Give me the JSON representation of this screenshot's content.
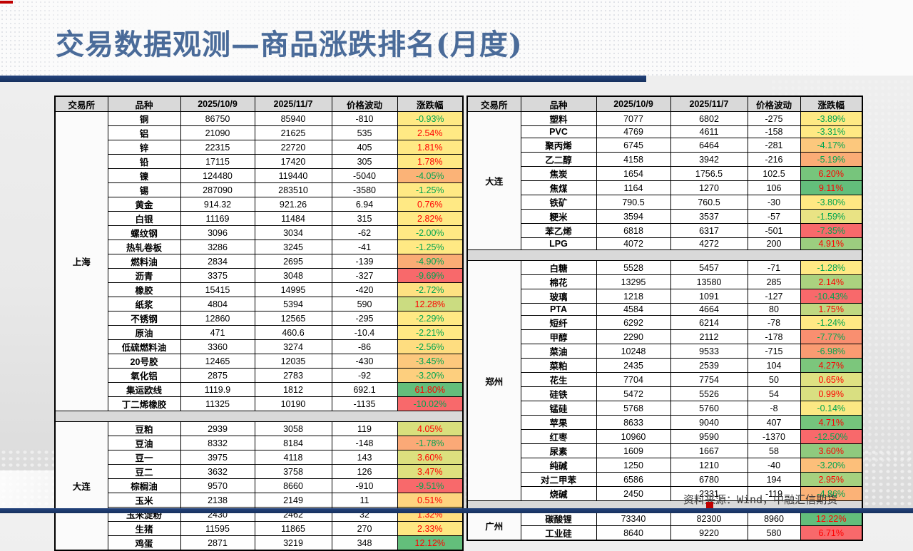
{
  "page": {
    "title": "交易数据观测—商品涨跌排名(月度)",
    "source_note": "资料来源：Wind，中融汇信期货"
  },
  "colors": {
    "up_text": "#FF0000",
    "down_text": "#00A550",
    "bar_navy": "#1B3764",
    "accent_red": "#C00000",
    "header_gray": "#D9D9D9"
  },
  "tables": [
    {
      "id": "table-left",
      "headers": [
        "交易所",
        "品种",
        "2025/10/9",
        "2025/11/7",
        "价格波动",
        "涨跌幅"
      ],
      "sections": [
        {
          "exchange": "上海",
          "rows": [
            {
              "variety": "铜",
              "oct": "86750",
              "nov": "85940",
              "delta": "-810",
              "pct": "-0.93%",
              "bg": "#FFE984",
              "dir": "down"
            },
            {
              "variety": "铝",
              "oct": "21090",
              "nov": "21625",
              "delta": "535",
              "pct": "2.54%",
              "bg": "#FFE984",
              "dir": "up"
            },
            {
              "variety": "锌",
              "oct": "22315",
              "nov": "22720",
              "delta": "405",
              "pct": "1.81%",
              "bg": "#FFE984",
              "dir": "up"
            },
            {
              "variety": "铅",
              "oct": "17115",
              "nov": "17420",
              "delta": "305",
              "pct": "1.78%",
              "bg": "#FFE984",
              "dir": "up"
            },
            {
              "variety": "镍",
              "oct": "124480",
              "nov": "119440",
              "delta": "-5040",
              "pct": "-4.05%",
              "bg": "#FBB377",
              "dir": "down"
            },
            {
              "variety": "锡",
              "oct": "287090",
              "nov": "283510",
              "delta": "-3580",
              "pct": "-1.25%",
              "bg": "#FFE984",
              "dir": "down"
            },
            {
              "variety": "黄金",
              "oct": "914.32",
              "nov": "921.26",
              "delta": "6.94",
              "pct": "0.76%",
              "bg": "#FFE984",
              "dir": "up"
            },
            {
              "variety": "白银",
              "oct": "11169",
              "nov": "11484",
              "delta": "315",
              "pct": "2.82%",
              "bg": "#FFE984",
              "dir": "up"
            },
            {
              "variety": "螺纹钢",
              "oct": "3096",
              "nov": "3034",
              "delta": "-62",
              "pct": "-2.00%",
              "bg": "#FFE984",
              "dir": "down"
            },
            {
              "variety": "热轧卷板",
              "oct": "3286",
              "nov": "3245",
              "delta": "-41",
              "pct": "-1.25%",
              "bg": "#FFE984",
              "dir": "down"
            },
            {
              "variety": "燃料油",
              "oct": "2834",
              "nov": "2695",
              "delta": "-139",
              "pct": "-4.90%",
              "bg": "#FAAC75",
              "dir": "down"
            },
            {
              "variety": "沥青",
              "oct": "3375",
              "nov": "3048",
              "delta": "-327",
              "pct": "-9.69%",
              "bg": "#F8696B",
              "dir": "down"
            },
            {
              "variety": "橡胶",
              "oct": "15415",
              "nov": "14995",
              "delta": "-420",
              "pct": "-2.72%",
              "bg": "#FEE182",
              "dir": "down"
            },
            {
              "variety": "纸浆",
              "oct": "4804",
              "nov": "5394",
              "delta": "590",
              "pct": "12.28%",
              "bg": "#CBDC81",
              "dir": "up"
            },
            {
              "variety": "不锈钢",
              "oct": "12860",
              "nov": "12565",
              "delta": "-295",
              "pct": "-2.29%",
              "bg": "#FFE984",
              "dir": "down"
            },
            {
              "variety": "原油",
              "oct": "471",
              "nov": "460.6",
              "delta": "-10.4",
              "pct": "-2.21%",
              "bg": "#FFE984",
              "dir": "down"
            },
            {
              "variety": "低硫燃料油",
              "oct": "3360",
              "nov": "3274",
              "delta": "-86",
              "pct": "-2.56%",
              "bg": "#FEDD80",
              "dir": "down"
            },
            {
              "variety": "20号胶",
              "oct": "12465",
              "nov": "12035",
              "delta": "-430",
              "pct": "-3.45%",
              "bg": "#FCC87D",
              "dir": "down"
            },
            {
              "variety": "氧化铝",
              "oct": "2875",
              "nov": "2783",
              "delta": "-92",
              "pct": "-3.20%",
              "bg": "#FDCF7E",
              "dir": "down"
            },
            {
              "variety": "集运欧线",
              "oct": "1119.9",
              "nov": "1812",
              "delta": "692.1",
              "pct": "61.80%",
              "bg": "#63BE7B",
              "dir": "up"
            },
            {
              "variety": "丁二烯橡胶",
              "oct": "11325",
              "nov": "10190",
              "delta": "-1135",
              "pct": "-10.02%",
              "bg": "#F8696B",
              "dir": "down"
            }
          ]
        },
        {
          "exchange": "大连",
          "rows": [
            {
              "variety": "豆粕",
              "oct": "2939",
              "nov": "3058",
              "delta": "119",
              "pct": "4.05%",
              "bg": "#D9DF7D",
              "dir": "up"
            },
            {
              "variety": "豆油",
              "oct": "8332",
              "nov": "8184",
              "delta": "-148",
              "pct": "-1.78%",
              "bg": "#FBA977",
              "dir": "down"
            },
            {
              "variety": "豆一",
              "oct": "3975",
              "nov": "4118",
              "delta": "143",
              "pct": "3.60%",
              "bg": "#DCE07E",
              "dir": "up"
            },
            {
              "variety": "豆二",
              "oct": "3632",
              "nov": "3758",
              "delta": "126",
              "pct": "3.47%",
              "bg": "#DEE07E",
              "dir": "up"
            },
            {
              "variety": "棕榈油",
              "oct": "9570",
              "nov": "8660",
              "delta": "-910",
              "pct": "-9.51%",
              "bg": "#F8696B",
              "dir": "down"
            },
            {
              "variety": "玉米",
              "oct": "2138",
              "nov": "2149",
              "delta": "11",
              "pct": "0.51%",
              "bg": "#FDD47F",
              "dir": "up"
            },
            {
              "variety": "玉米淀粉",
              "oct": "2430",
              "nov": "2462",
              "delta": "32",
              "pct": "1.32%",
              "bg": "#FEDF80",
              "dir": "up"
            },
            {
              "variety": "生猪",
              "oct": "11595",
              "nov": "11865",
              "delta": "270",
              "pct": "2.33%",
              "bg": "#FEE782",
              "dir": "up"
            },
            {
              "variety": "鸡蛋",
              "oct": "2871",
              "nov": "3219",
              "delta": "348",
              "pct": "12.12%",
              "bg": "#63BE7B",
              "dir": "up"
            }
          ]
        }
      ]
    },
    {
      "id": "table-right",
      "headers": [
        "交易所",
        "品种",
        "2025/10/9",
        "2025/11/7",
        "价格波动",
        "涨跌幅"
      ],
      "sections": [
        {
          "exchange": "大连",
          "rows": [
            {
              "variety": "塑料",
              "oct": "7077",
              "nov": "6802",
              "delta": "-275",
              "pct": "-3.89%",
              "bg": "#FFE984",
              "dir": "down"
            },
            {
              "variety": "PVC",
              "oct": "4769",
              "nov": "4611",
              "delta": "-158",
              "pct": "-3.31%",
              "bg": "#FFE984",
              "dir": "down"
            },
            {
              "variety": "聚丙烯",
              "oct": "6745",
              "nov": "6464",
              "delta": "-281",
              "pct": "-4.17%",
              "bg": "#FCC87D",
              "dir": "down"
            },
            {
              "variety": "乙二醇",
              "oct": "4158",
              "nov": "3942",
              "delta": "-216",
              "pct": "-5.19%",
              "bg": "#FBAC76",
              "dir": "down"
            },
            {
              "variety": "焦炭",
              "oct": "1654",
              "nov": "1756.5",
              "delta": "102.5",
              "pct": "6.20%",
              "bg": "#77C57C",
              "dir": "up"
            },
            {
              "variety": "焦煤",
              "oct": "1164",
              "nov": "1270",
              "delta": "106",
              "pct": "9.11%",
              "bg": "#63BE7B",
              "dir": "up"
            },
            {
              "variety": "铁矿",
              "oct": "790.5",
              "nov": "760.5",
              "delta": "-30",
              "pct": "-3.80%",
              "bg": "#FFE883",
              "dir": "down"
            },
            {
              "variety": "粳米",
              "oct": "3594",
              "nov": "3537",
              "delta": "-57",
              "pct": "-1.59%",
              "bg": "#E9E384",
              "dir": "down"
            },
            {
              "variety": "苯乙烯",
              "oct": "6818",
              "nov": "6317",
              "delta": "-501",
              "pct": "-7.35%",
              "bg": "#F8696B",
              "dir": "down"
            },
            {
              "variety": "LPG",
              "oct": "4072",
              "nov": "4272",
              "delta": "200",
              "pct": "4.91%",
              "bg": "#9CCD7F",
              "dir": "up"
            }
          ]
        },
        {
          "exchange": "郑州",
          "rows": [
            {
              "variety": "白糖",
              "oct": "5528",
              "nov": "5457",
              "delta": "-71",
              "pct": "-1.28%",
              "bg": "#FFE984",
              "dir": "down"
            },
            {
              "variety": "棉花",
              "oct": "13295",
              "nov": "13580",
              "delta": "285",
              "pct": "2.14%",
              "bg": "#ABD27F",
              "dir": "up"
            },
            {
              "variety": "玻璃",
              "oct": "1218",
              "nov": "1091",
              "delta": "-127",
              "pct": "-10.43%",
              "bg": "#F8696B",
              "dir": "down"
            },
            {
              "variety": "PTA",
              "oct": "4584",
              "nov": "4664",
              "delta": "80",
              "pct": "1.75%",
              "bg": "#BFD881",
              "dir": "up"
            },
            {
              "variety": "短纤",
              "oct": "6292",
              "nov": "6214",
              "delta": "-78",
              "pct": "-1.24%",
              "bg": "#FFE984",
              "dir": "down"
            },
            {
              "variety": "甲醇",
              "oct": "2290",
              "nov": "2112",
              "delta": "-178",
              "pct": "-7.77%",
              "bg": "#F98F70",
              "dir": "down"
            },
            {
              "variety": "菜油",
              "oct": "10248",
              "nov": "9533",
              "delta": "-715",
              "pct": "-6.98%",
              "bg": "#FA9B72",
              "dir": "down"
            },
            {
              "variety": "菜粕",
              "oct": "2435",
              "nov": "2539",
              "delta": "104",
              "pct": "4.27%",
              "bg": "#7CC67C",
              "dir": "up"
            },
            {
              "variety": "花生",
              "oct": "7704",
              "nov": "7754",
              "delta": "50",
              "pct": "0.65%",
              "bg": "#DFE182",
              "dir": "up"
            },
            {
              "variety": "硅铁",
              "oct": "5472",
              "nov": "5526",
              "delta": "54",
              "pct": "0.99%",
              "bg": "#D9DF81",
              "dir": "up"
            },
            {
              "variety": "锰硅",
              "oct": "5768",
              "nov": "5760",
              "delta": "-8",
              "pct": "-0.14%",
              "bg": "#FCE883",
              "dir": "down"
            },
            {
              "variety": "苹果",
              "oct": "8633",
              "nov": "9040",
              "delta": "407",
              "pct": "4.71%",
              "bg": "#75C47C",
              "dir": "up"
            },
            {
              "variety": "红枣",
              "oct": "10960",
              "nov": "9590",
              "delta": "-1370",
              "pct": "-12.50%",
              "bg": "#F8696B",
              "dir": "down"
            },
            {
              "variety": "尿素",
              "oct": "1609",
              "nov": "1667",
              "delta": "58",
              "pct": "3.60%",
              "bg": "#8FCA7E",
              "dir": "up"
            },
            {
              "variety": "纯碱",
              "oct": "1250",
              "nov": "1210",
              "delta": "-40",
              "pct": "-3.20%",
              "bg": "#FCBF7A",
              "dir": "down"
            },
            {
              "variety": "对二甲苯",
              "oct": "6586",
              "nov": "6780",
              "delta": "194",
              "pct": "2.95%",
              "bg": "#A5D17F",
              "dir": "up"
            },
            {
              "variety": "烧碱",
              "oct": "2450",
              "nov": "2331",
              "delta": "-119",
              "pct": "-4.86%",
              "bg": "#FBB277",
              "dir": "down"
            }
          ]
        },
        {
          "exchange": "广州",
          "rows": [
            {
              "variety": "碳酸锂",
              "oct": "73340",
              "nov": "82300",
              "delta": "8960",
              "pct": "12.22%",
              "bg": "#63BE7B",
              "dir": "up"
            },
            {
              "variety": "工业硅",
              "oct": "8640",
              "nov": "9220",
              "delta": "580",
              "pct": "6.71%",
              "bg": "#F8696B",
              "dir": "up"
            }
          ]
        }
      ]
    }
  ]
}
